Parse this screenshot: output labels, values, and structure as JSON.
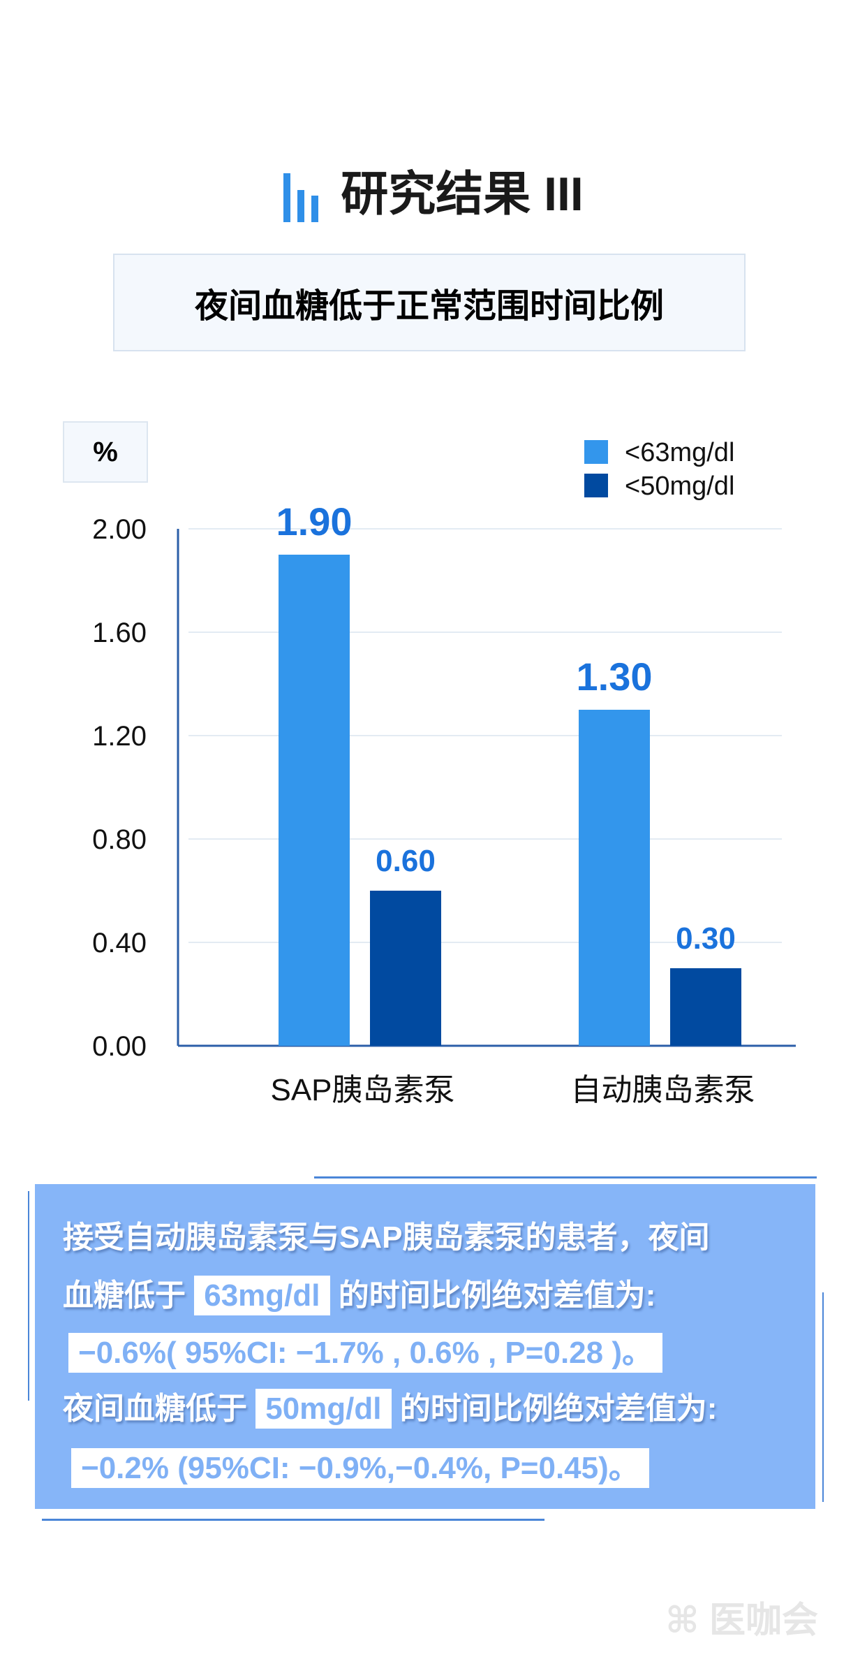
{
  "header": {
    "title": "研究结果 III",
    "icon": "bar-chart-icon"
  },
  "subtitle": "夜间血糖低于正常范围时间比例",
  "chart_data": {
    "type": "bar",
    "title": "夜间血糖低于正常范围时间比例",
    "ylabel": "%",
    "ylim": [
      0,
      2.0
    ],
    "yticks": [
      "0.00",
      "0.40",
      "0.80",
      "1.20",
      "1.60",
      "2.00"
    ],
    "grid": true,
    "legend_position": "top-right",
    "categories": [
      "SAP胰岛素泵",
      "自动胰岛素泵"
    ],
    "series": [
      {
        "name": "<63mg/dl",
        "color": "#3396ec",
        "values": [
          1.9,
          1.3
        ],
        "labels": [
          "1.90",
          "1.30"
        ]
      },
      {
        "name": "<50mg/dl",
        "color": "#014aa0",
        "values": [
          0.6,
          0.3
        ],
        "labels": [
          "0.60",
          "0.30"
        ]
      }
    ],
    "label_color": "#1a72dc"
  },
  "summary": {
    "line1": "接受自动胰岛素泵与SAP胰岛素泵的患者，夜间",
    "line2_pre": "血糖低于",
    "line2_hl": "63mg/dl",
    "line2_post": "的时间比例绝对差值为:",
    "line3": "−0.6%( 95%CI: −1.7% , 0.6% , P=0.28 )。",
    "line4_pre": "夜间血糖低于",
    "line4_hl": "50mg/dl",
    "line4_post": "的时间比例绝对差值为:",
    "line5": "−0.2% (95%CI: −0.9%,−0.4%, P=0.45)。"
  },
  "watermark": "医咖会"
}
